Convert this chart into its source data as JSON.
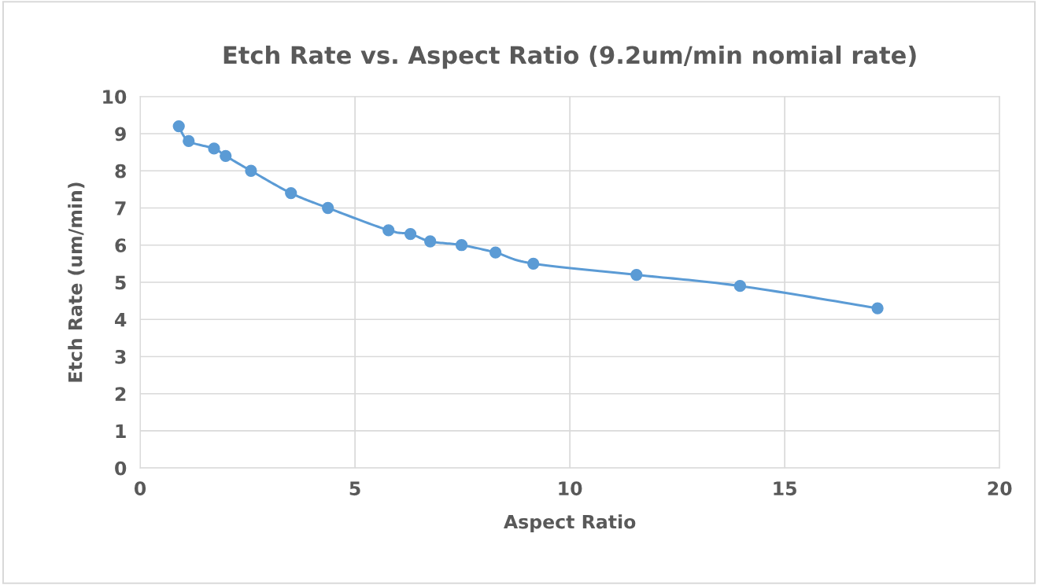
{
  "chart_data": {
    "type": "line",
    "title": "Etch Rate vs. Aspect Ratio (9.2um/min nomial rate)",
    "xlabel": "Aspect Ratio",
    "ylabel": "Etch Rate (um/min)",
    "x": [
      0.9,
      1.13,
      1.72,
      1.99,
      2.58,
      3.51,
      4.37,
      5.78,
      6.29,
      6.75,
      7.48,
      8.27,
      9.15,
      11.55,
      13.96,
      17.16
    ],
    "series": [
      {
        "color": "#5b9bd5",
        "values": [
          9.2,
          8.8,
          8.6,
          8.4,
          8.0,
          7.4,
          7.0,
          6.4,
          6.3,
          6.1,
          6.0,
          5.8,
          5.5,
          5.2,
          4.9,
          4.3
        ]
      }
    ],
    "xlim": [
      0,
      20
    ],
    "xticks": [
      0,
      5,
      10,
      15,
      20
    ],
    "ylim": [
      0,
      10
    ],
    "yticks": [
      0,
      1,
      2,
      3,
      4,
      5,
      6,
      7,
      8,
      9,
      10
    ],
    "grid": true,
    "marker": "circle",
    "line_style": "solid",
    "legend": false
  }
}
